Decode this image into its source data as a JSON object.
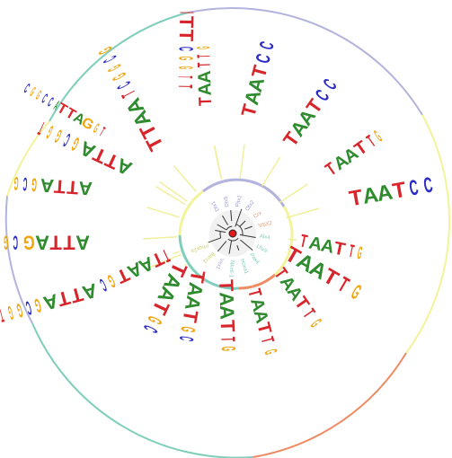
{
  "colors": {
    "A": "#2e8b2e",
    "C": "#2a2ac8",
    "G": "#f2a40c",
    "T": "#d7252b",
    "ring_teal": "#7fcdbb",
    "ring_lavender": "#b3b3dd",
    "ring_yellow": "#f3f39a",
    "ring_salmon": "#ef8a62",
    "node": "#e31a1c"
  },
  "motifs": [
    {
      "id": "m01",
      "seq": "TAATCC",
      "weights": [
        1.0,
        1.0,
        1.0,
        1.0,
        0.55,
        0.55
      ]
    },
    {
      "id": "m02",
      "seq": "TAATTG",
      "weights": [
        0.75,
        1.0,
        1.0,
        1.0,
        0.45,
        0.25
      ]
    },
    {
      "id": "m03",
      "seq": "TAATCC",
      "weights": [
        1.0,
        1.0,
        1.0,
        1.0,
        0.55,
        0.5
      ]
    },
    {
      "id": "m04",
      "seq": "TAATCC",
      "weights": [
        1.0,
        1.0,
        1.0,
        1.0,
        0.6,
        0.5
      ]
    },
    {
      "id": "m05",
      "seq": "TAATTG",
      "weights": [
        0.8,
        1.0,
        1.0,
        0.45,
        0.3,
        0.2
      ]
    },
    {
      "id": "m06",
      "seq": "ITTCGGTT",
      "weights": [
        0.3,
        1.0,
        1.0,
        0.3,
        0.25,
        0.2,
        0.2,
        0.3
      ]
    },
    {
      "id": "m07",
      "seq": "TTAATCGGCG",
      "weights": [
        1.0,
        1.0,
        1.0,
        1.0,
        0.3,
        0.25,
        0.25,
        0.2,
        0.2,
        0.25
      ]
    },
    {
      "id": "m08",
      "seq": "ATTAGCGGT",
      "weights": [
        1.0,
        1.0,
        1.0,
        1.0,
        0.3,
        0.25,
        0.25,
        0.2,
        0.25
      ]
    },
    {
      "id": "m09",
      "seq": "CGGCCATTAGGT",
      "weights": [
        0.3,
        0.25,
        0.25,
        0.3,
        0.3,
        0.25,
        1.0,
        1.0,
        1.0,
        1.0,
        0.3,
        0.3
      ]
    },
    {
      "id": "m10",
      "seq": "ATTAGCG",
      "weights": [
        1.0,
        1.0,
        1.0,
        1.0,
        0.35,
        0.3,
        0.3
      ]
    },
    {
      "id": "m11",
      "seq": "ATTAGCG",
      "weights": [
        1.0,
        1.0,
        1.0,
        1.0,
        0.75,
        0.35,
        0.3
      ]
    },
    {
      "id": "m12",
      "seq": "ATTAGCGGT",
      "weights": [
        1.0,
        1.0,
        1.0,
        1.0,
        0.35,
        0.3,
        0.3,
        0.25,
        0.25
      ]
    },
    {
      "id": "m13",
      "seq": "TTAATGC",
      "weights": [
        0.4,
        0.95,
        1.0,
        1.0,
        1.0,
        0.35,
        0.3
      ]
    },
    {
      "id": "m14",
      "seq": "TAATGC",
      "weights": [
        1.0,
        1.0,
        1.0,
        1.0,
        0.35,
        0.3
      ]
    },
    {
      "id": "m15",
      "seq": "TAATGC",
      "weights": [
        1.0,
        1.0,
        1.0,
        1.0,
        0.35,
        0.3
      ]
    },
    {
      "id": "m16",
      "seq": "TAATTG",
      "weights": [
        1.0,
        1.0,
        1.0,
        1.0,
        0.4,
        0.3
      ]
    },
    {
      "id": "m17",
      "seq": "TAATTG",
      "weights": [
        0.7,
        1.0,
        1.0,
        1.0,
        0.5,
        0.3
      ]
    },
    {
      "id": "m18",
      "seq": "TAATTG",
      "weights": [
        0.7,
        1.0,
        1.0,
        1.0,
        0.5,
        0.3
      ]
    },
    {
      "id": "m19",
      "seq": "TAATTG",
      "weights": [
        1.0,
        1.0,
        1.0,
        1.0,
        0.6,
        0.4
      ]
    },
    {
      "id": "m20",
      "seq": "TAATTG",
      "weights": [
        0.6,
        1.0,
        1.0,
        1.0,
        0.4,
        0.3
      ]
    }
  ],
  "labels": [
    "Dlx1",
    "Dlx5",
    "Pitx1",
    "Otx2",
    "Crx",
    "VSX2",
    "Alx4",
    "Lhx9",
    "Pax4",
    "Hoxa1",
    "Nkx6-1",
    "Vax1",
    "Barx1",
    "Phox2a"
  ]
}
